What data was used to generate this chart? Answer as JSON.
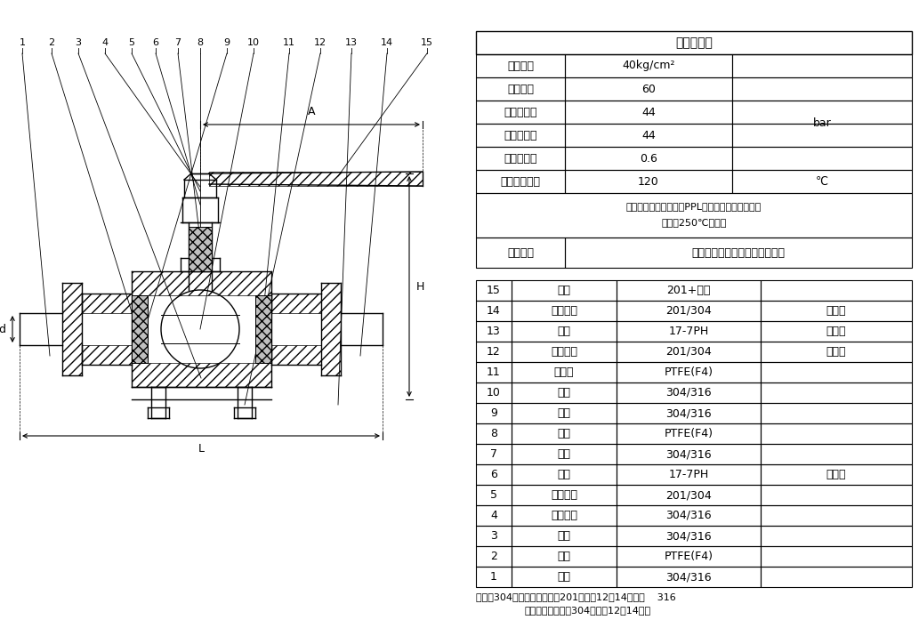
{
  "bg_color": "#ffffff",
  "line_color": "#000000",
  "fig_width": 10.33,
  "fig_height": 7.06,
  "perf_table": {
    "title": "性能规范表",
    "rows": [
      [
        "压力等级",
        "40kg/cm²",
        ""
      ],
      [
        "强度试验",
        "60",
        ""
      ],
      [
        "上密封试验",
        "44",
        ""
      ],
      [
        "水密封试验",
        "44",
        "bar"
      ],
      [
        "气密封试验",
        "0.6",
        ""
      ],
      [
        "最高工作温度",
        "120",
        "℃"
      ]
    ],
    "note_line1": "（如需更高温度可定制PPL材质密封体系，可适用",
    "note_line2": "于温度250℃以下）",
    "medium_label": "通用介质",
    "medium_value": "水、油、气、一般腐蚀性介质等"
  },
  "parts_table": {
    "rows": [
      [
        "15",
        "把手",
        "201+塑料",
        ""
      ],
      [
        "14",
        "六角螺母",
        "201/304",
        "标准件"
      ],
      [
        "13",
        "弹垫",
        "17-7PH",
        "标准件"
      ],
      [
        "12",
        "拉紧螺杆",
        "201/304",
        "标准件"
      ],
      [
        "11",
        "密封圈",
        "PTFE(F4)",
        ""
      ],
      [
        "10",
        "球体",
        "304/316",
        ""
      ],
      [
        "9",
        "垫圈",
        "304/316",
        ""
      ],
      [
        "8",
        "填料",
        "PTFE(F4)",
        ""
      ],
      [
        "7",
        "阀杆",
        "304/316",
        ""
      ],
      [
        "6",
        "弹垫",
        "17-7PH",
        "标准件"
      ],
      [
        "5",
        "六角螺栓",
        "201/304",
        ""
      ],
      [
        "4",
        "并紧螺母",
        "304/316",
        ""
      ],
      [
        "3",
        "阀体",
        "304/316",
        ""
      ],
      [
        "2",
        "垫片",
        "PTFE(F4)",
        ""
      ],
      [
        "1",
        "阀盖",
        "304/316",
        ""
      ]
    ],
    "footnote1": "备注：304材质配的标准件为201材质（12、14项），    316",
    "footnote2": "材质配的标准件为304材质（12、14项）"
  },
  "drawing": {
    "part_labels": [
      "1",
      "2",
      "3",
      "4",
      "5",
      "6",
      "7",
      "8",
      "9",
      "10",
      "11",
      "12",
      "13",
      "14",
      "15"
    ],
    "dim_labels": [
      "A",
      "H",
      "d",
      "L"
    ]
  }
}
